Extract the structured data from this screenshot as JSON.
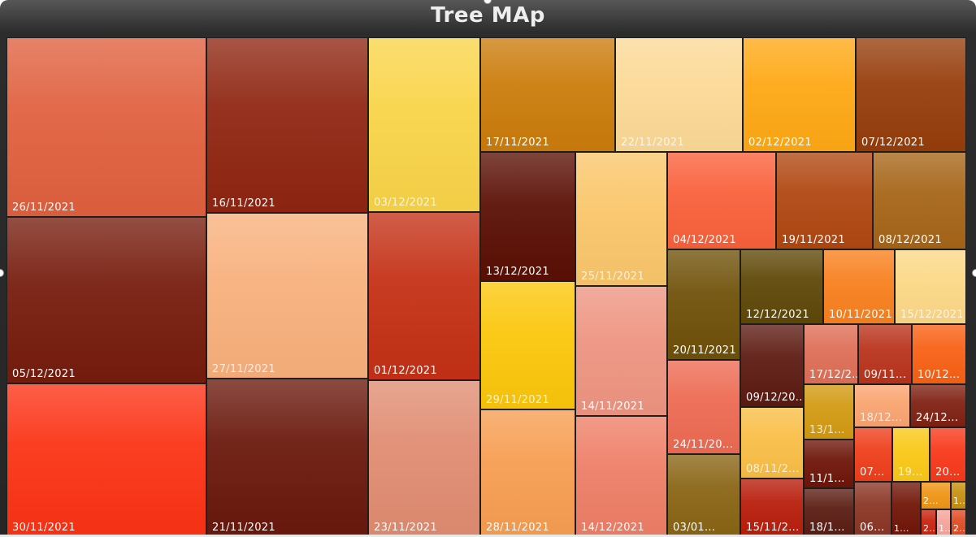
{
  "chart_data": {
    "type": "treemap",
    "title": "Tree MAp",
    "items": [
      {
        "label": "26/11/2021",
        "color": "#E0603E",
        "light_text": false
      },
      {
        "label": "05/12/2021",
        "color": "#761C0D",
        "light_text": false
      },
      {
        "label": "30/11/2021",
        "color": "#FB3214",
        "light_text": false
      },
      {
        "label": "16/11/2021",
        "color": "#8F2511",
        "light_text": false
      },
      {
        "label": "27/11/2021",
        "color": "#F8B07C",
        "light_text": true
      },
      {
        "label": "21/11/2021",
        "color": "#6A180C",
        "light_text": false
      },
      {
        "label": "03/12/2021",
        "color": "#F9D448",
        "light_text": true
      },
      {
        "label": "01/12/2021",
        "color": "#C43015",
        "light_text": false
      },
      {
        "label": "23/11/2021",
        "color": "#E08C71",
        "light_text": false
      },
      {
        "label": "17/11/2021",
        "color": "#CB7C0B",
        "light_text": false
      },
      {
        "label": "22/11/2021",
        "color": "#FCD996",
        "light_text": true
      },
      {
        "label": "02/12/2021",
        "color": "#FEA814",
        "light_text": false
      },
      {
        "label": "07/12/2021",
        "color": "#963D0B",
        "light_text": false
      },
      {
        "label": "13/12/2021",
        "color": "#5A0F04",
        "light_text": false
      },
      {
        "label": "25/11/2021",
        "color": "#FAC66A",
        "light_text": true
      },
      {
        "label": "29/11/2021",
        "color": "#FBC60A",
        "light_text": true
      },
      {
        "label": "14/11/2021",
        "color": "#EE9481",
        "light_text": false
      },
      {
        "label": "28/11/2021",
        "color": "#F79D51",
        "light_text": false
      },
      {
        "label": "14/12/2021",
        "color": "#EE7E66",
        "light_text": false
      },
      {
        "label": "04/12/2021",
        "color": "#F9603A",
        "light_text": false
      },
      {
        "label": "19/11/2021",
        "color": "#B04711",
        "light_text": false
      },
      {
        "label": "08/12/2021",
        "color": "#A66518",
        "light_text": false
      },
      {
        "label": "20/11/2021",
        "color": "#6E5008",
        "light_text": false
      },
      {
        "label": "12/12/2021",
        "color": "#5E4707",
        "light_text": false
      },
      {
        "label": "10/11/2021",
        "color": "#F8801E",
        "light_text": false
      },
      {
        "label": "15/12/2021",
        "color": "#FCD886",
        "light_text": true
      },
      {
        "label": "24/11/20...",
        "color": "#ED6A52",
        "light_text": false
      },
      {
        "label": "09/12/20...",
        "color": "#5C1A11",
        "light_text": false
      },
      {
        "label": "17/12/2...",
        "color": "#DE6E56",
        "light_text": false
      },
      {
        "label": "09/11...",
        "color": "#B9331C",
        "light_text": false
      },
      {
        "label": "10/12...",
        "color": "#F86014",
        "light_text": false
      },
      {
        "label": "03/01...",
        "color": "#896414",
        "light_text": false
      },
      {
        "label": "08/11/2...",
        "color": "#F9BE46",
        "light_text": true
      },
      {
        "label": "13/1...",
        "color": "#D29A12",
        "light_text": true
      },
      {
        "label": "18/12...",
        "color": "#F9A470",
        "light_text": true
      },
      {
        "label": "24/12...",
        "color": "#7F2112",
        "light_text": false
      },
      {
        "label": "15/11/2...",
        "color": "#B81D0B",
        "light_text": false
      },
      {
        "label": "11/1...",
        "color": "#6E1509",
        "light_text": false
      },
      {
        "label": "07...",
        "color": "#EE3E1B",
        "light_text": false
      },
      {
        "label": "19...",
        "color": "#FAC816",
        "light_text": true
      },
      {
        "label": "20...",
        "color": "#F8381A",
        "light_text": false
      },
      {
        "label": "18/1...",
        "color": "#5A1C12",
        "light_text": false
      },
      {
        "label": "06...",
        "color": "#8A3524",
        "light_text": false
      },
      {
        "label": "1...",
        "color": "#701507",
        "light_text": false
      },
      {
        "label": "2...",
        "color": "#EF9515",
        "light_text": false
      },
      {
        "label": "1...",
        "color": "#C8900E",
        "light_text": false
      },
      {
        "label": "2...",
        "color": "#C8240F",
        "light_text": false
      },
      {
        "label": "1...",
        "color": "#F5A49A",
        "light_text": false
      },
      {
        "label": "2...",
        "color": "#E14B23",
        "light_text": false
      }
    ]
  }
}
